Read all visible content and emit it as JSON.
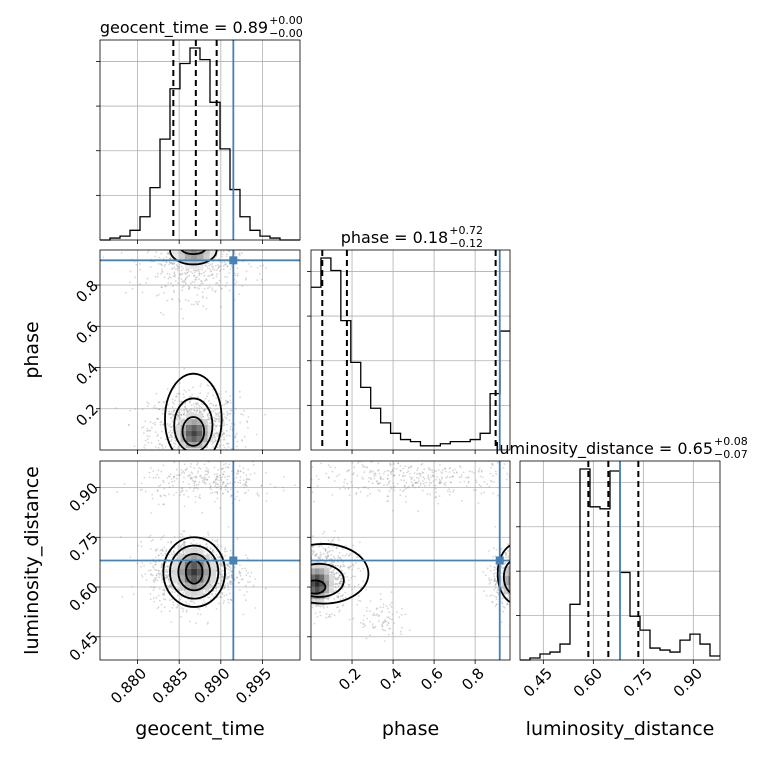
{
  "chart_data": {
    "type": "corner",
    "parameters": [
      "geocent_time",
      "phase",
      "luminosity_distance"
    ],
    "truths": {
      "geocent_time": 0.8915,
      "phase": 0.92,
      "luminosity_distance": 0.68
    },
    "titles": [
      {
        "param": "geocent_time",
        "text": "geocent_time = 0.89",
        "plus": "+0.00",
        "minus": "−0.00"
      },
      {
        "param": "phase",
        "text": "phase = 0.18",
        "plus": "+0.72",
        "minus": "−0.12"
      },
      {
        "param": "luminosity_distance",
        "text": "luminosity_distance = 0.65",
        "plus": "+0.08",
        "minus": "−0.07"
      }
    ],
    "axes": {
      "geocent_time": {
        "range": [
          0.8755,
          0.8995
        ],
        "ticks": [
          0.88,
          0.885,
          0.89,
          0.895
        ],
        "ticklabels": [
          "0.880",
          "0.885",
          "0.890",
          "0.895"
        ]
      },
      "phase": {
        "range": [
          0.0,
          0.97
        ],
        "ticks": [
          0.2,
          0.4,
          0.6,
          0.8
        ],
        "ticklabels": [
          "0.2",
          "0.4",
          "0.6",
          "0.8"
        ]
      },
      "luminosity_distance": {
        "range": [
          0.38,
          0.98
        ],
        "ticks": [
          0.45,
          0.6,
          0.75,
          0.9
        ],
        "ticklabels": [
          "0.45",
          "0.60",
          "0.75",
          "0.90"
        ]
      }
    },
    "histograms": [
      {
        "param": "geocent_time",
        "bin_edges": [
          0.8755,
          0.8767,
          0.8779,
          0.8791,
          0.8803,
          0.8815,
          0.8827,
          0.8839,
          0.8851,
          0.8863,
          0.8875,
          0.8887,
          0.8899,
          0.8911,
          0.8923,
          0.8935,
          0.8947,
          0.8959,
          0.8971,
          0.8983,
          0.8995
        ],
        "counts": [
          0.0,
          0.01,
          0.02,
          0.05,
          0.12,
          0.27,
          0.52,
          0.78,
          0.91,
          0.99,
          0.93,
          0.71,
          0.47,
          0.26,
          0.12,
          0.05,
          0.02,
          0.01,
          0.0,
          0.0
        ],
        "quantiles": [
          0.8843,
          0.887,
          0.8895
        ]
      },
      {
        "param": "phase",
        "bin_edges": [
          0.0,
          0.0485,
          0.097,
          0.1455,
          0.194,
          0.2425,
          0.291,
          0.3395,
          0.388,
          0.4365,
          0.485,
          0.5335,
          0.582,
          0.6305,
          0.679,
          0.7275,
          0.776,
          0.8245,
          0.873,
          0.9215,
          0.97
        ],
        "counts": [
          0.78,
          0.92,
          0.86,
          0.62,
          0.42,
          0.3,
          0.2,
          0.13,
          0.08,
          0.05,
          0.04,
          0.02,
          0.02,
          0.03,
          0.04,
          0.04,
          0.05,
          0.08,
          0.27,
          0.57
        ],
        "quantiles": [
          0.055,
          0.175,
          0.9
        ]
      },
      {
        "param": "luminosity_distance",
        "bin_edges": [
          0.38,
          0.41,
          0.44,
          0.47,
          0.5,
          0.53,
          0.56,
          0.59,
          0.62,
          0.65,
          0.68,
          0.71,
          0.74,
          0.77,
          0.8,
          0.83,
          0.86,
          0.89,
          0.92,
          0.95,
          0.98
        ],
        "counts": [
          0.0,
          0.01,
          0.03,
          0.04,
          0.08,
          0.28,
          0.96,
          0.77,
          0.76,
          0.95,
          0.44,
          0.22,
          0.15,
          0.06,
          0.05,
          0.04,
          0.1,
          0.13,
          0.08,
          0.02
        ],
        "quantiles": [
          0.585,
          0.645,
          0.735
        ]
      }
    ]
  }
}
